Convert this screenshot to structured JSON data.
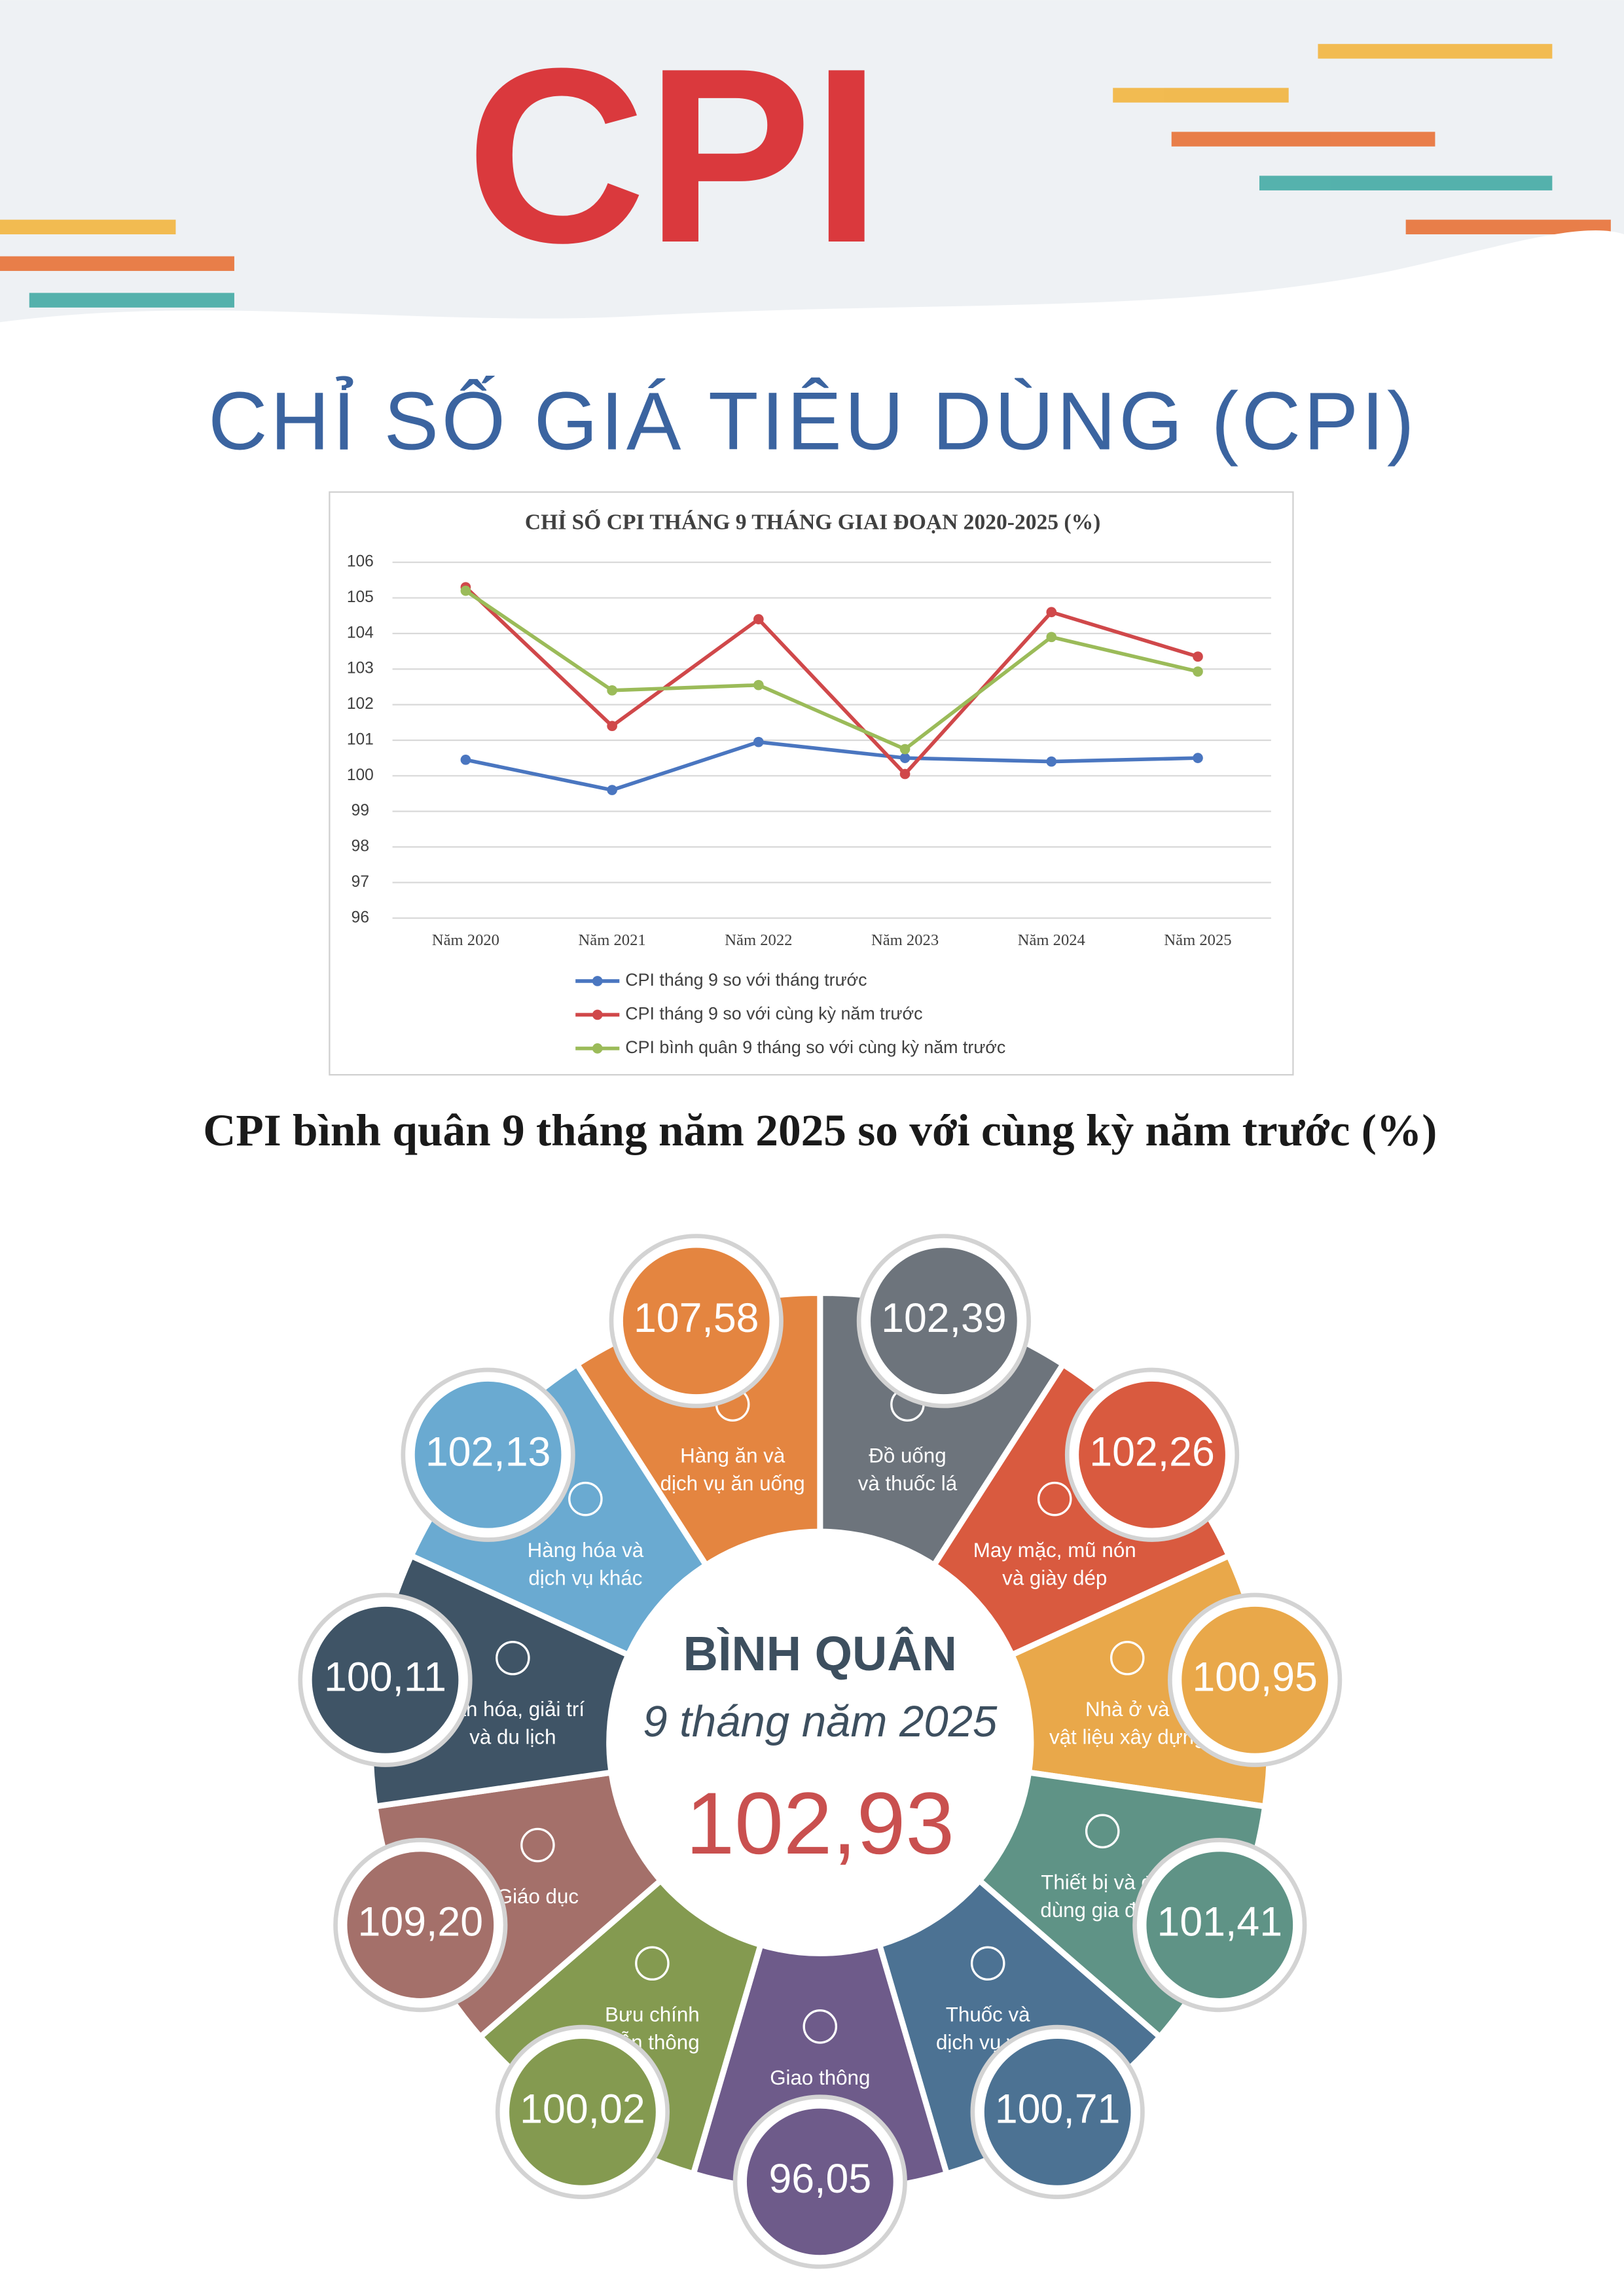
{
  "banner_text": "CPI",
  "title": "CHỈ SỐ GIÁ TIÊU DÙNG (CPI)",
  "chart_data": [
    {
      "type": "line",
      "title": "CHỈ SỐ CPI THÁNG 9 THÁNG GIAI ĐOẠN 2020-2025 (%)",
      "categories": [
        "Năm 2020",
        "Năm 2021",
        "Năm 2022",
        "Năm 2023",
        "Năm 2024",
        "Năm 2025"
      ],
      "series": [
        {
          "name": "CPI tháng 9 so với tháng trước",
          "color": "#4a76c0",
          "values": [
            100.45,
            99.6,
            100.95,
            100.5,
            100.4,
            100.5
          ]
        },
        {
          "name": "CPI tháng 9 so với cùng kỳ năm trước",
          "color": "#d0484a",
          "values": [
            105.3,
            101.4,
            104.4,
            100.05,
            104.6,
            103.35
          ]
        },
        {
          "name": "CPI bình quân 9 tháng so với cùng kỳ năm trước",
          "color": "#9bbb59",
          "values": [
            105.2,
            102.4,
            102.55,
            100.75,
            103.9,
            102.93
          ]
        }
      ],
      "ylim": [
        96,
        106
      ],
      "yticks": [
        96,
        97,
        98,
        99,
        100,
        101,
        102,
        103,
        104,
        105,
        106
      ],
      "grid": true,
      "legend": "bottom"
    },
    {
      "type": "radial",
      "title": "CPI bình quân 9 tháng năm 2025 so với cùng kỳ năm trước (%)",
      "center": {
        "title": "BÌNH QUÂN",
        "subtitle": "9 tháng năm 2025",
        "value": 102.93,
        "value_label": "102,93"
      },
      "categories": [
        [
          "Đồ uống",
          "và thuốc lá"
        ],
        [
          "May mặc, mũ nón",
          "và giày dép"
        ],
        [
          "Nhà ở và",
          "vật liệu xây dựng"
        ],
        [
          "Thiết bị và đồ",
          "dùng gia đình"
        ],
        [
          "Thuốc và",
          "dịch vụ y tế"
        ],
        [
          "Giao thông"
        ],
        [
          "Bưu chính",
          "viễn thông"
        ],
        [
          "Giáo dục"
        ],
        [
          "Văn hóa, giải trí",
          "và du lịch"
        ],
        [
          "Hàng hóa và",
          "dịch vụ khác"
        ],
        [
          "Hàng ăn và",
          "dịch vụ ăn uống"
        ]
      ],
      "values": [
        102.39,
        102.26,
        100.95,
        101.41,
        100.71,
        96.05,
        100.02,
        109.2,
        100.11,
        102.13,
        107.58
      ],
      "value_labels": [
        "102,39",
        "102,26",
        "100,95",
        "101,41",
        "100,71",
        "96,05",
        "100,02",
        "109,20",
        "100,11",
        "102,13",
        "107,58"
      ],
      "colors": [
        "#6d747c",
        "#d95a3f",
        "#e9a84a",
        "#5f9386",
        "#4c7293",
        "#6e5b8a",
        "#849a50",
        "#a4706a",
        "#3f5466",
        "#6aaad1",
        "#e48540"
      ]
    }
  ]
}
